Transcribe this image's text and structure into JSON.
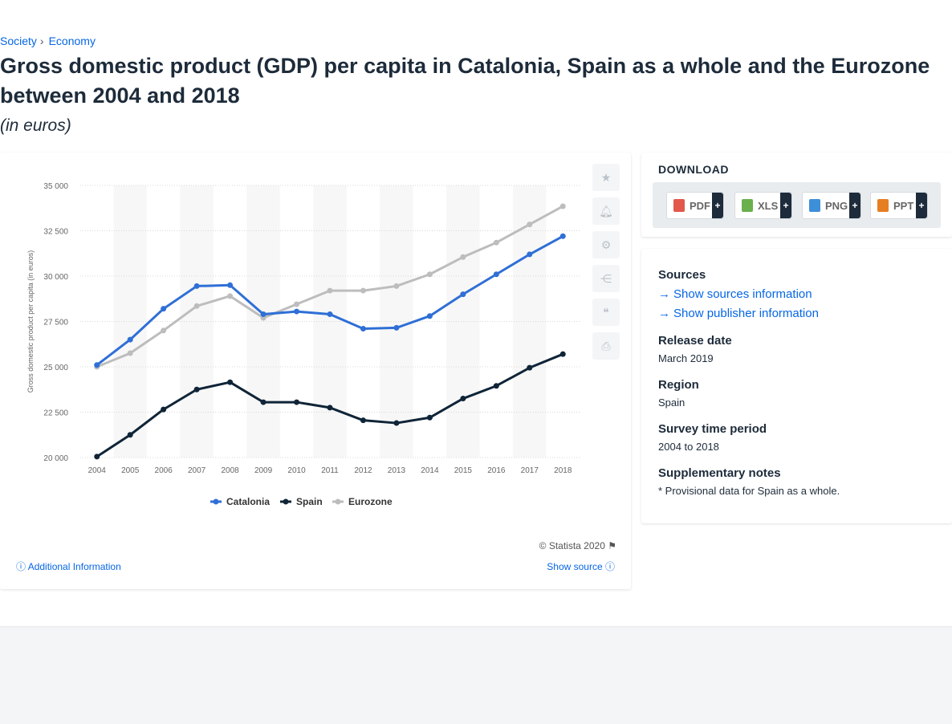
{
  "breadcrumb": {
    "items": [
      "Society",
      "Economy"
    ],
    "separator": "›"
  },
  "title": "Gross domestic product (GDP) per capita in Catalonia, Spain as a whole and the Eurozone between 2004 and 2018",
  "subtitle": "(in euros)",
  "tools": {
    "icons": [
      "star-icon",
      "bell-icon",
      "gear-icon",
      "share-icon",
      "quote-icon",
      "print-icon"
    ]
  },
  "footer": {
    "copyright": "© Statista 2020",
    "additional_info": "Additional Information",
    "show_source": "Show source"
  },
  "download": {
    "title": "DOWNLOAD",
    "buttons": [
      {
        "label": "PDF",
        "color": "#e2574c"
      },
      {
        "label": "XLS",
        "color": "#6ab04c"
      },
      {
        "label": "PNG",
        "color": "#3d8fd8"
      },
      {
        "label": "PPT",
        "color": "#e67e22"
      }
    ],
    "plus": "+"
  },
  "info": {
    "sources_heading": "Sources",
    "show_sources": "Show sources information",
    "show_publisher": "Show publisher information",
    "release_heading": "Release date",
    "release_value": "March 2019",
    "region_heading": "Region",
    "region_value": "Spain",
    "survey_heading": "Survey time period",
    "survey_value": "2004 to 2018",
    "notes_heading": "Supplementary notes",
    "notes_value": "* Provisional data for Spain as a whole."
  },
  "chart_data": {
    "type": "line",
    "ylabel": "Gross domestic product per capita (in euros)",
    "xlabel": "",
    "ylim": [
      20000,
      35000
    ],
    "yticks": [
      20000,
      22500,
      25000,
      27500,
      30000,
      32500,
      35000
    ],
    "ytick_labels": [
      "20 000",
      "22 500",
      "25 000",
      "27 500",
      "30 000",
      "32 500",
      "35 000"
    ],
    "x": [
      "2004",
      "2005",
      "2006",
      "2007",
      "2008",
      "2009",
      "2010",
      "2011",
      "2012",
      "2013",
      "2014",
      "2015",
      "2016",
      "2017",
      "2018"
    ],
    "grid": true,
    "legend": "bottom-center",
    "series": [
      {
        "name": "Catalonia",
        "color": "#2f6fd6",
        "values": [
          25100,
          26500,
          28200,
          29450,
          29500,
          27900,
          28050,
          27900,
          27100,
          27150,
          27800,
          29000,
          30100,
          31200,
          32200
        ]
      },
      {
        "name": "Spain",
        "color": "#0f2437",
        "values": [
          20050,
          21250,
          22650,
          23750,
          24150,
          23050,
          23050,
          22750,
          22050,
          21900,
          22200,
          23250,
          23950,
          24950,
          25700
        ]
      },
      {
        "name": "Eurozone",
        "color": "#bdbdbd",
        "values": [
          25000,
          25750,
          27000,
          28350,
          28900,
          27700,
          28450,
          29200,
          29200,
          29450,
          30100,
          31050,
          31850,
          32850,
          33850
        ]
      }
    ]
  }
}
